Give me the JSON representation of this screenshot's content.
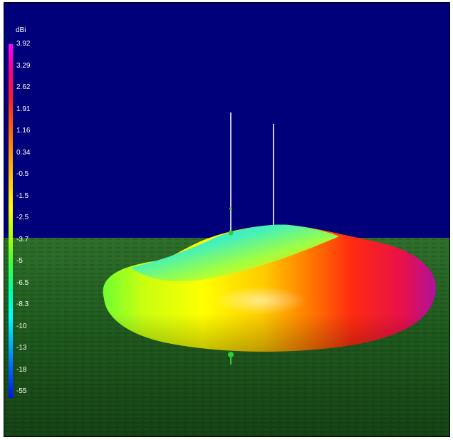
{
  "legend": {
    "unit": "dBi",
    "ticks": [
      "3.92",
      "3.29",
      "2.62",
      "1.91",
      "1.16",
      "0.34",
      "-0.5",
      "-1.5",
      "-2.5",
      "-3.7",
      "-5",
      "-6.5",
      "-8.3",
      "-10",
      "-13",
      "-18",
      "-55"
    ],
    "gradient_colors": [
      "#ff00ff",
      "#ff0080",
      "#ff2020",
      "#ff6000",
      "#ff9900",
      "#ffcc00",
      "#ffff00",
      "#b0ff00",
      "#40ff40",
      "#00ffa0",
      "#00ffff",
      "#00b0ff",
      "#0060ff",
      "#0010ff"
    ]
  },
  "scene": {
    "sky_color": "#00007a",
    "ground_color": "#1c5a1c",
    "antenna_color": "#c8c8c8",
    "marker_color": "#33cc33"
  }
}
